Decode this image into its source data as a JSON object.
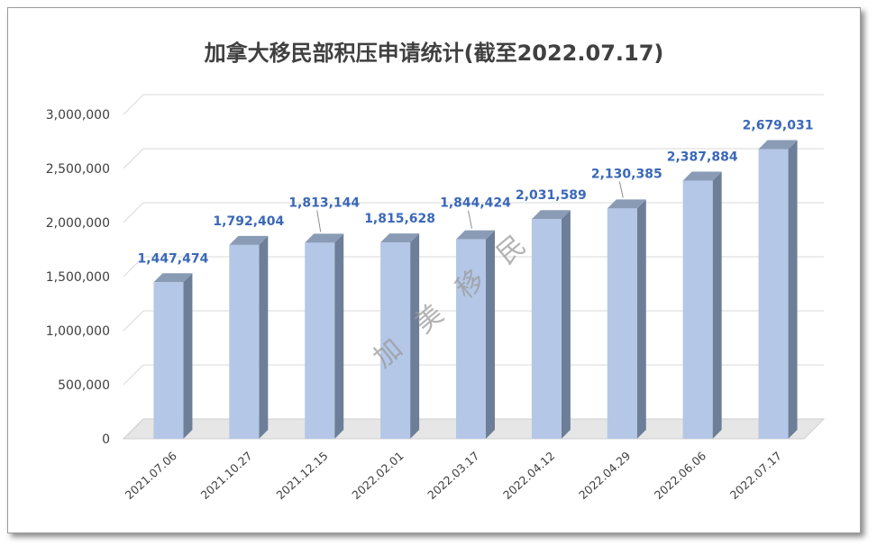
{
  "chart_data": {
    "type": "bar",
    "title": "加拿大移民部积压申请统计(截至2022.07.17)",
    "categories": [
      "2021.07.06",
      "2021.10.27",
      "2021.12.15",
      "2022.02.01",
      "2022.03.17",
      "2022.04.12",
      "2022.04.29",
      "2022.06.06",
      "2022.07.17"
    ],
    "values": [
      1447474,
      1792404,
      1813144,
      1815628,
      1844424,
      2031589,
      2130385,
      2387884,
      2679031
    ],
    "data_labels": [
      "1,447,474",
      "1,792,404",
      "1,813,144",
      "1,815,628",
      "1,844,424",
      "2,031,589",
      "2,130,385",
      "2,387,884",
      "2,679,031"
    ],
    "y_ticks": [
      "0",
      "500,000",
      "1,000,000",
      "1,500,000",
      "2,000,000",
      "2,500,000",
      "3,000,000"
    ],
    "ylim": [
      0,
      3000000
    ],
    "xlabel": "",
    "ylabel": "",
    "grid": true,
    "style": "3d-bar",
    "colors": {
      "bar_front": "#b4c7e7",
      "bar_side": "#6d7e98",
      "bar_top": "#8a9bb6",
      "data_label": "#3a68b8",
      "grid": "#d9d9d9"
    }
  },
  "watermark": "加 美 移 民"
}
